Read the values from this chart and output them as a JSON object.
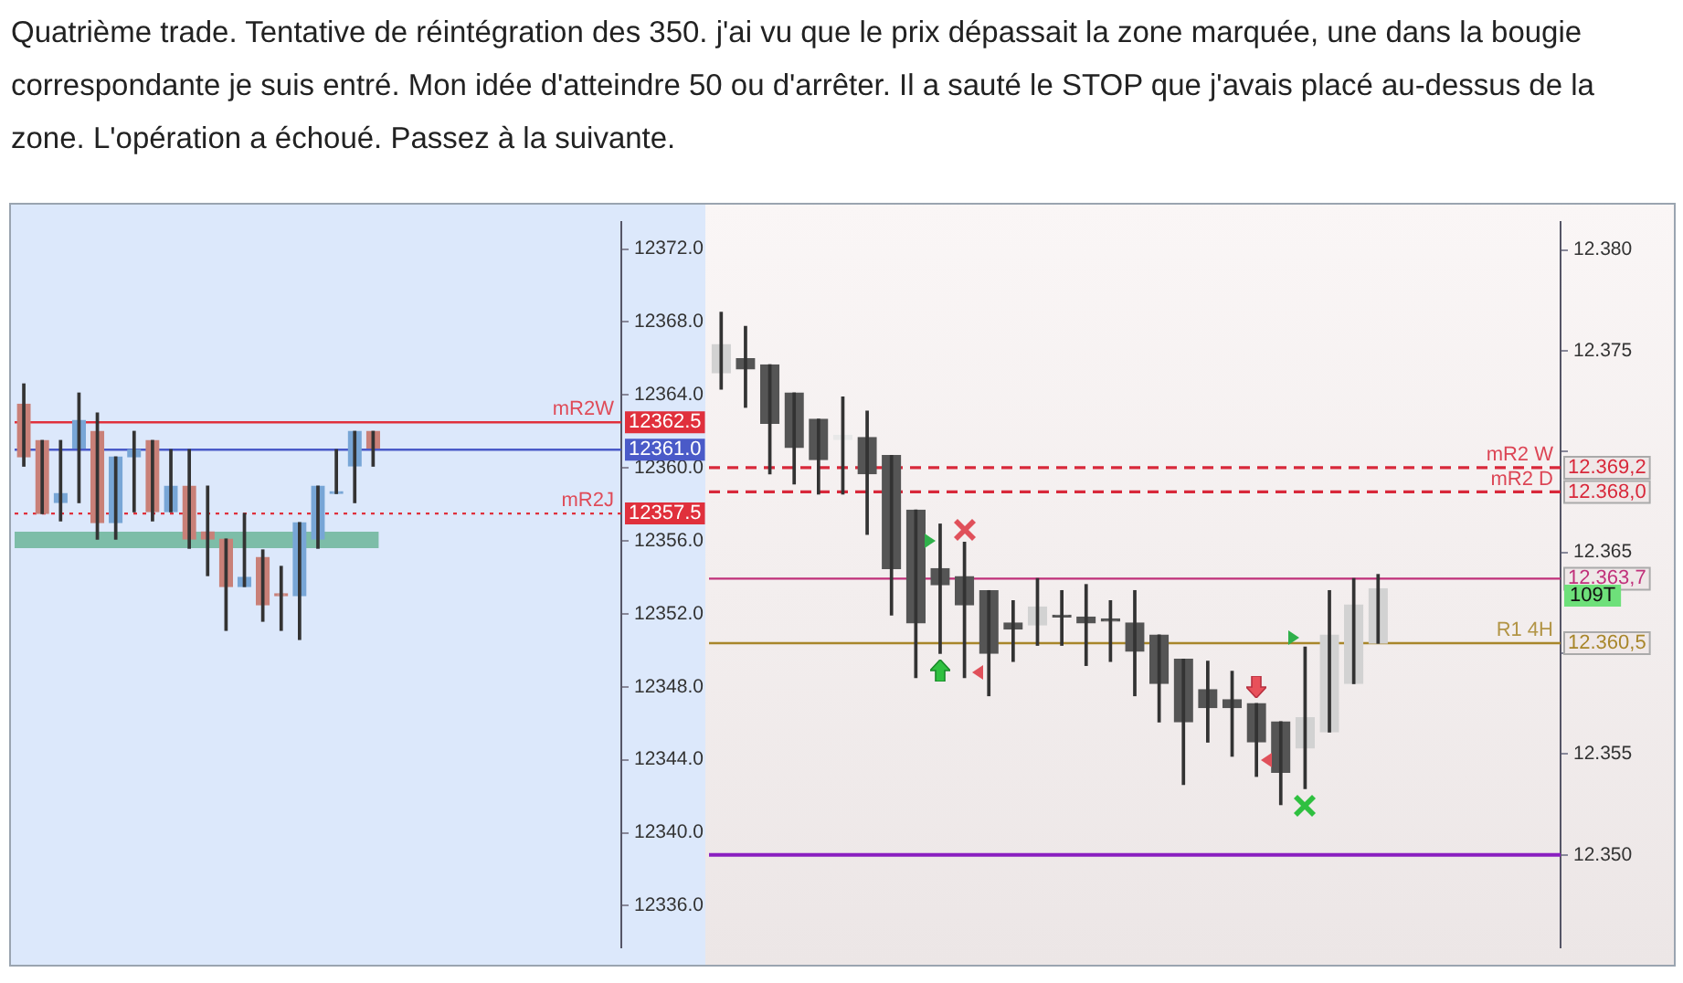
{
  "chart_data": [
    {
      "type": "candlestick",
      "title": "Quatrième trade. Tentative de réintégration des 350. j'ai vu que le prix dépassait la zone marquée, une dans la bougie correspondante je suis entré. Mon idée d'atteindre 50 ou d'arrêter. Il a sauté le STOP que j'avais placé au-dessus de la zone. L'opération a échoué. Passez à la suivante.",
      "categories": [
        null,
        null,
        null,
        null,
        null,
        null,
        null,
        null,
        null,
        null,
        null,
        null,
        null,
        null,
        null,
        null,
        null,
        null,
        null,
        null,
        null,
        null,
        null,
        null,
        null,
        null,
        null,
        null,
        null,
        null,
        null,
        null,
        null
      ],
      "ohlc": [
        [
          12363.5,
          12364.6,
          12360.1,
          12360.6
        ],
        [
          12361.5,
          12361.5,
          12357.5,
          12357.5
        ],
        [
          12358.1,
          12361.5,
          12357.1,
          12358.6
        ],
        [
          12361.1,
          12364.1,
          12358.1,
          12362.6
        ],
        [
          12362.0,
          12363.0,
          12356.1,
          12357.0
        ],
        [
          12357.0,
          12360.6,
          12356.1,
          12360.6
        ],
        [
          12360.6,
          12362.0,
          12357.6,
          12361.0
        ],
        [
          12361.5,
          12361.5,
          12357.1,
          12357.6
        ],
        [
          12357.6,
          12361.0,
          12357.6,
          12359.0
        ],
        [
          12359.0,
          12361.0,
          12355.6,
          12356.1
        ],
        [
          12356.5,
          12359.0,
          12354.1,
          12356.1
        ],
        [
          12356.1,
          12356.1,
          12351.1,
          12353.5
        ],
        [
          12353.5,
          12357.5,
          12353.5,
          12354.0
        ],
        [
          12355.1,
          12355.5,
          12351.6,
          12352.5
        ],
        [
          12353.0,
          12354.6,
          12351.1,
          12353.0
        ],
        [
          12353.0,
          12357.0,
          12350.6,
          12357.0
        ],
        [
          12356.1,
          12359.0,
          12355.6,
          12359.0
        ],
        [
          12358.6,
          12361.0,
          12358.6,
          12358.6
        ],
        [
          12360.1,
          12362.0,
          12358.1,
          12362.0
        ],
        [
          12362.0,
          12362.0,
          12360.1,
          12361.1
        ],
        null,
        null,
        null,
        null,
        null,
        null,
        null,
        null,
        null,
        null,
        null,
        null,
        null
      ],
      "colors": [
        "#c98078",
        "#c98078",
        "#78a6d6",
        "#78a6d6",
        "#c98078",
        "#78a6d6",
        "#78a6d6",
        "#c98078",
        "#78a6d6",
        "#c98078",
        "#c98078",
        "#c98078",
        "#78a6d6",
        "#c98078",
        "#c98078",
        "#78a6d6",
        "#78a6d6",
        "#78a6d6",
        "#78a6d6",
        "#c98078",
        null,
        null,
        null,
        null,
        null,
        null,
        null,
        null,
        null,
        null,
        null,
        null,
        null
      ],
      "ylim": [
        12333.7,
        12373.5
      ],
      "yticks": [
        {
          "value": 12336,
          "label": "12336.0"
        },
        {
          "value": 12340,
          "label": "12340.0"
        },
        {
          "value": 12344,
          "label": "12344.0"
        },
        {
          "value": 12348,
          "label": "12348.0"
        },
        {
          "value": 12352,
          "label": "12352.0"
        },
        {
          "value": 12356,
          "label": "12356.0"
        },
        {
          "value": 12360,
          "label": "12360.0"
        },
        {
          "value": 12364,
          "label": "12364.0"
        },
        {
          "value": 12368,
          "label": "12368.0"
        },
        {
          "value": 12372,
          "label": "12372.0"
        }
      ],
      "ref_lines": [
        {
          "axis": "y",
          "value": 12362.5,
          "label": "12362.5",
          "color": "#e0303c",
          "line_style": "solid"
        },
        {
          "axis": "y",
          "value": 12361.0,
          "label": "12361.0",
          "color": "#4a5ac8",
          "line_style": "solid"
        },
        {
          "axis": "y",
          "value": 12357.5,
          "label": "12357.5",
          "color": "#e0303c",
          "line_style": "dotted"
        }
      ],
      "bands": [
        {
          "axis": "y",
          "from": 12355.6,
          "to": 12356.5,
          "color": "#72b89e"
        }
      ],
      "annotations": [
        {
          "text": "mR2W",
          "y": 12362.5
        },
        {
          "text": "mR2J",
          "y": 12357.5
        }
      ],
      "grid": false,
      "legend": false,
      "tick_labels": "y"
    },
    {
      "type": "candlestick",
      "categories": [
        null,
        null,
        null,
        null,
        null,
        null,
        null,
        null,
        null,
        null,
        null,
        null,
        null,
        null,
        null,
        null,
        null,
        null,
        null,
        null,
        null,
        null,
        null,
        null,
        null,
        null,
        null,
        null,
        null,
        null,
        null,
        null,
        null,
        null,
        null
      ],
      "ohlc": [
        [
          12.3739,
          12.3769,
          12.3731,
          12.3753
        ],
        [
          12.3746,
          12.3762,
          12.3722,
          12.3741
        ],
        [
          12.3743,
          12.3743,
          12.3689,
          12.3714
        ],
        [
          12.3729,
          12.3729,
          12.3684,
          12.3702
        ],
        [
          12.3716,
          12.3716,
          12.3679,
          12.3696
        ],
        [
          12.3706,
          12.3727,
          12.3679,
          12.3708
        ],
        [
          12.3707,
          12.372,
          12.3659,
          12.3689
        ],
        [
          12.3698,
          12.3698,
          12.3619,
          12.3642
        ],
        [
          12.3671,
          12.3671,
          12.3588,
          12.3615
        ],
        [
          12.3642,
          12.3664,
          12.36,
          12.3634
        ],
        [
          12.3638,
          12.3655,
          12.3588,
          12.3624
        ],
        [
          12.3631,
          12.3631,
          12.3579,
          12.36
        ],
        [
          12.3615,
          12.3626,
          12.3596,
          12.3612
        ],
        [
          12.3614,
          12.3637,
          12.3604,
          12.3623
        ],
        [
          12.3618,
          12.3631,
          12.3604,
          12.3618
        ],
        [
          12.3618,
          12.3634,
          12.3594,
          12.3615
        ],
        [
          12.3617,
          12.3626,
          12.3596,
          12.3616
        ],
        [
          12.3615,
          12.3631,
          12.3579,
          12.3601
        ],
        [
          12.3609,
          12.3609,
          12.3566,
          12.3585
        ],
        [
          12.3597,
          12.3597,
          12.3535,
          12.3566
        ],
        [
          12.3582,
          12.3596,
          12.3556,
          12.3573
        ],
        [
          12.3577,
          12.3591,
          12.3549,
          12.3573
        ],
        [
          12.3575,
          12.3575,
          12.3539,
          12.3556
        ],
        [
          12.3566,
          12.3566,
          12.3525,
          12.3541
        ],
        [
          12.3553,
          12.3603,
          12.3533,
          12.3568
        ],
        [
          12.3561,
          12.3631,
          12.3561,
          12.3609
        ],
        [
          12.3585,
          12.3637,
          12.3585,
          12.3624
        ],
        [
          12.3605,
          12.3639,
          12.3605,
          12.3632
        ],
        null,
        null,
        null,
        null,
        null,
        null,
        null
      ],
      "colors": [
        "#d2d2d2",
        "#555555",
        "#555555",
        "#555555",
        "#555555",
        "#e8e8e8",
        "#555555",
        "#555555",
        "#555555",
        "#555555",
        "#555555",
        "#555555",
        "#555555",
        "#d2d2d2",
        "#555555",
        "#555555",
        "#555555",
        "#555555",
        "#555555",
        "#555555",
        "#555555",
        "#555555",
        "#555555",
        "#555555",
        "#d2d2d2",
        "#d2d2d2",
        "#d2d2d2",
        "#d2d2d2",
        null,
        null,
        null,
        null,
        null,
        null,
        null
      ],
      "ylim": [
        12.3454,
        12.3814
      ],
      "yticks": [
        {
          "value": 12.35,
          "label": "12.350"
        },
        12.355,
        {
          "value": 12.36,
          "label": null
        },
        12.365,
        {
          "value": 12.37,
          "label": null
        },
        12.375,
        {
          "value": 12.38,
          "label": "12.380"
        }
      ],
      "ref_lines": [
        {
          "axis": "y",
          "value": 12.3692,
          "label": "12.369,2",
          "color": "#d8283a",
          "line_style": "dashed"
        },
        {
          "axis": "y",
          "value": 12.368,
          "label": "12.368,0",
          "color": "#d8283a",
          "line_style": "dashed"
        },
        {
          "axis": "y",
          "value": 12.3637,
          "label": "12.363,7",
          "color": "#c0307a",
          "line_style": "solid"
        },
        {
          "axis": "y",
          "value": 12.3605,
          "label": "12.360,5",
          "color": "#a8862a",
          "line_style": "solid"
        },
        {
          "axis": "y",
          "value": 12.35,
          "label": null,
          "color": "#8a1fc0",
          "line_style": "solid"
        }
      ],
      "annotations": [
        {
          "text": "mR2 W",
          "y": 12.3692
        },
        {
          "text": "mR2 D",
          "y": 12.368
        },
        {
          "text": "R1 4H",
          "y": 12.3605
        },
        "109T"
      ],
      "grid": false,
      "legend": false,
      "tick_labels": "y"
    }
  ]
}
